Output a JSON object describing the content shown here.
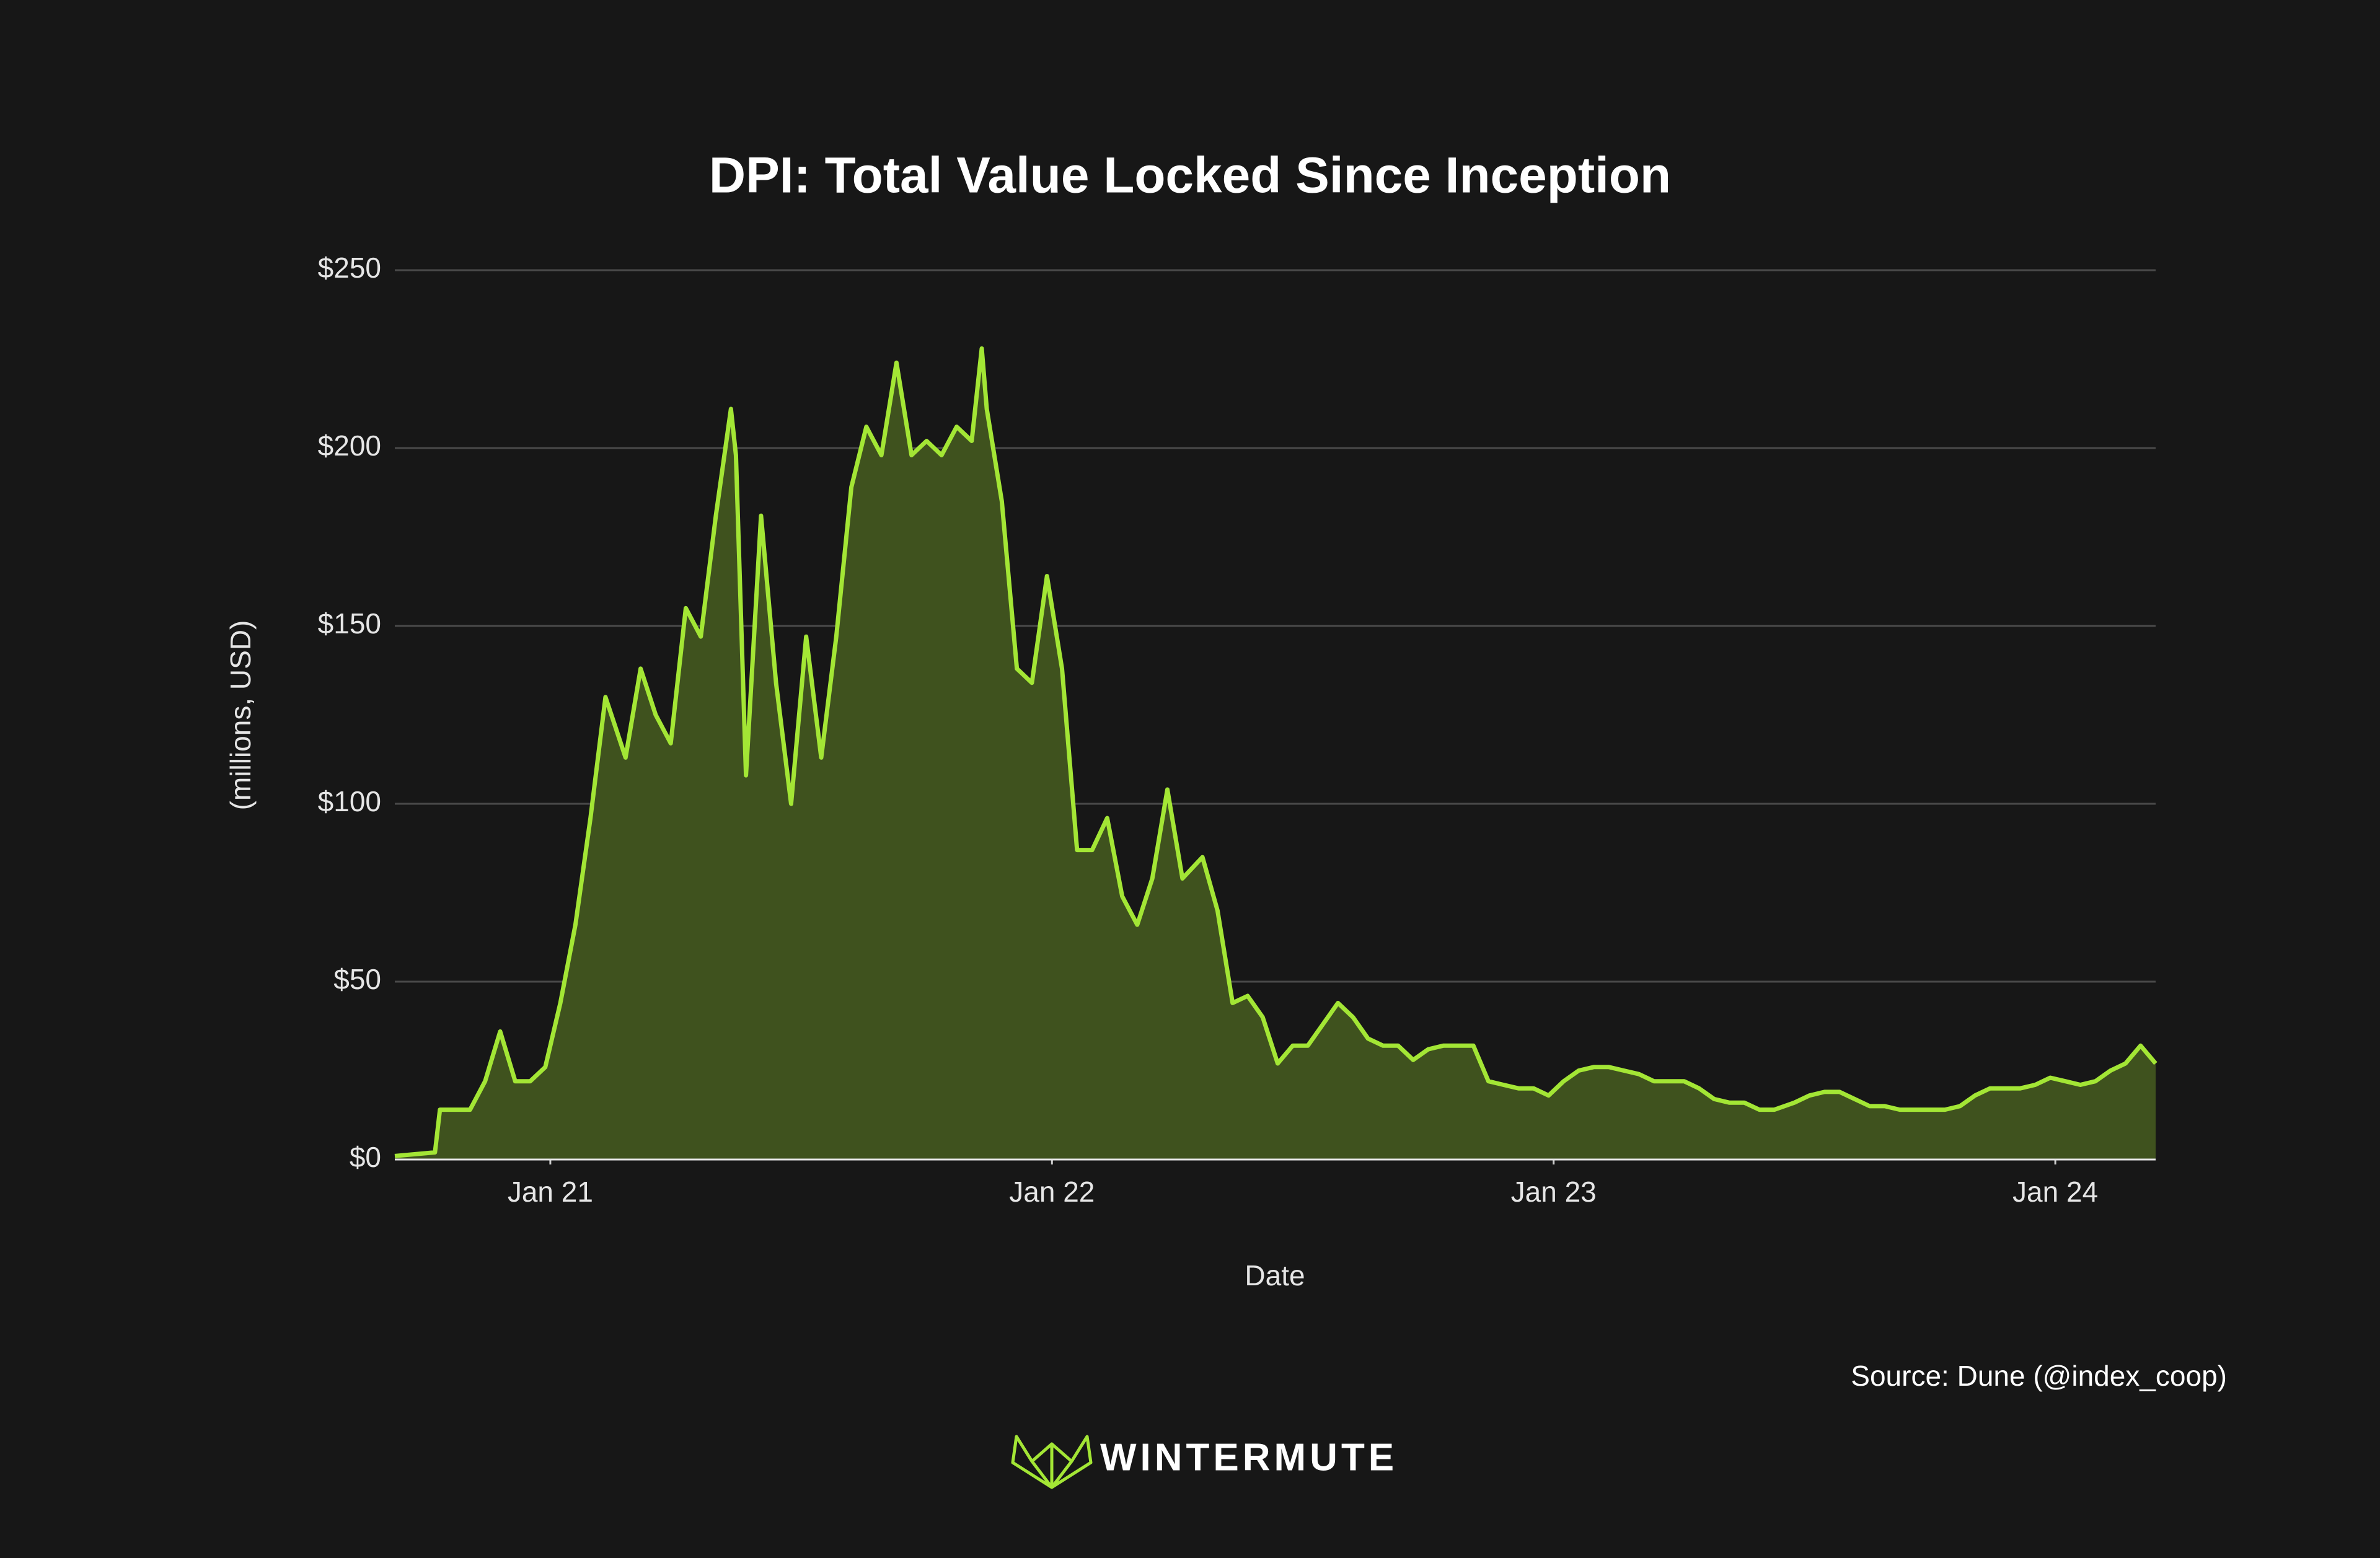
{
  "chart_data": {
    "type": "area",
    "title": "DPI: Total Value Locked Since Inception",
    "x_label": "Date",
    "y_label": "(millions, USD)",
    "source": "Source: Dune (@index_coop)",
    "brand": "WINTERMUTE",
    "color": "#a3e635",
    "fill_color": "#3f521e",
    "grid": true,
    "xlim": [
      2020.69,
      2024.2
    ],
    "xticks": [
      {
        "value": 2021,
        "label": "Jan 21"
      },
      {
        "value": 2022,
        "label": "Jan 22"
      },
      {
        "value": 2023,
        "label": "Jan 23"
      },
      {
        "value": 2024,
        "label": "Jan 24"
      }
    ],
    "ylim": [
      0,
      250
    ],
    "yticks": [
      {
        "value": 0,
        "label": "$0"
      },
      {
        "value": 50,
        "label": "$50"
      },
      {
        "value": 100,
        "label": "$100"
      },
      {
        "value": 150,
        "label": "$150"
      },
      {
        "value": 200,
        "label": "$200"
      },
      {
        "value": 250,
        "label": "$250"
      }
    ],
    "x": [
      2020.69,
      2020.77,
      2020.78,
      2020.81,
      2020.84,
      2020.87,
      2020.9,
      2020.93,
      2020.96,
      2020.99,
      2021.02,
      2021.05,
      2021.08,
      2021.11,
      2021.15,
      2021.18,
      2021.21,
      2021.24,
      2021.27,
      2021.3,
      2021.33,
      2021.36,
      2021.37,
      2021.39,
      2021.42,
      2021.45,
      2021.48,
      2021.51,
      2021.54,
      2021.57,
      2021.6,
      2021.63,
      2021.66,
      2021.69,
      2021.72,
      2021.75,
      2021.78,
      2021.81,
      2021.84,
      2021.86,
      2021.87,
      2021.9,
      2021.93,
      2021.96,
      2021.99,
      2022.02,
      2022.05,
      2022.08,
      2022.11,
      2022.14,
      2022.17,
      2022.2,
      2022.23,
      2022.26,
      2022.3,
      2022.33,
      2022.36,
      2022.39,
      2022.42,
      2022.45,
      2022.48,
      2022.51,
      2022.54,
      2022.57,
      2022.6,
      2022.63,
      2022.66,
      2022.69,
      2022.72,
      2022.75,
      2022.78,
      2022.81,
      2022.84,
      2022.87,
      2022.9,
      2022.93,
      2022.96,
      2022.99,
      2023.02,
      2023.05,
      2023.08,
      2023.11,
      2023.14,
      2023.17,
      2023.2,
      2023.23,
      2023.26,
      2023.29,
      2023.32,
      2023.35,
      2023.38,
      2023.41,
      2023.44,
      2023.48,
      2023.51,
      2023.54,
      2023.57,
      2023.6,
      2023.63,
      2023.66,
      2023.69,
      2023.72,
      2023.75,
      2023.78,
      2023.81,
      2023.84,
      2023.87,
      2023.9,
      2023.93,
      2023.96,
      2023.99,
      2024.02,
      2024.05,
      2024.08,
      2024.11,
      2024.14,
      2024.17,
      2024.2
    ],
    "values": [
      1,
      2,
      14,
      14,
      14,
      22,
      36,
      22,
      22,
      26,
      44,
      66,
      96,
      130,
      113,
      138,
      125,
      117,
      155,
      147,
      181,
      211,
      198,
      108,
      181,
      134,
      100,
      147,
      113,
      147,
      189,
      206,
      198,
      224,
      198,
      202,
      198,
      206,
      202,
      228,
      211,
      185,
      138,
      134,
      164,
      138,
      87,
      87,
      96,
      74,
      66,
      79,
      104,
      79,
      85,
      70,
      44,
      46,
      40,
      27,
      32,
      32,
      38,
      44,
      40,
      34,
      32,
      32,
      28,
      31,
      32,
      32,
      32,
      22,
      21,
      20,
      20,
      18,
      22,
      25,
      26,
      26,
      25,
      24,
      22,
      22,
      22,
      20,
      17,
      16,
      16,
      14,
      14,
      16,
      18,
      19,
      19,
      17,
      15,
      15,
      14,
      14,
      14,
      14,
      15,
      18,
      20,
      20,
      20,
      21,
      23,
      22,
      21,
      22,
      25,
      27,
      32,
      27
    ]
  }
}
